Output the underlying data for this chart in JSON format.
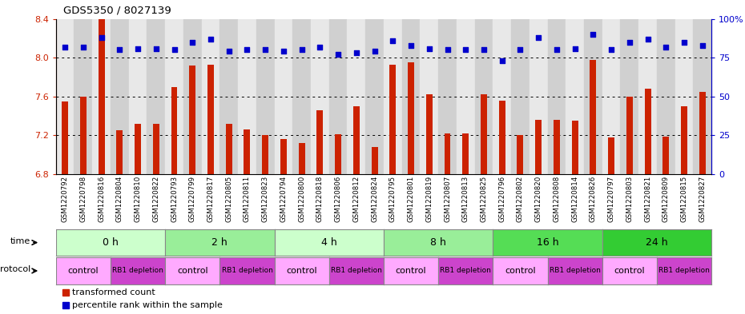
{
  "title": "GDS5350 / 8027139",
  "samples": [
    "GSM1220792",
    "GSM1220798",
    "GSM1220816",
    "GSM1220804",
    "GSM1220810",
    "GSM1220822",
    "GSM1220793",
    "GSM1220799",
    "GSM1220817",
    "GSM1220805",
    "GSM1220811",
    "GSM1220823",
    "GSM1220794",
    "GSM1220800",
    "GSM1220818",
    "GSM1220806",
    "GSM1220812",
    "GSM1220824",
    "GSM1220795",
    "GSM1220801",
    "GSM1220819",
    "GSM1220807",
    "GSM1220813",
    "GSM1220825",
    "GSM1220796",
    "GSM1220802",
    "GSM1220820",
    "GSM1220808",
    "GSM1220814",
    "GSM1220826",
    "GSM1220797",
    "GSM1220803",
    "GSM1220821",
    "GSM1220809",
    "GSM1220815",
    "GSM1220827"
  ],
  "red_values": [
    7.55,
    7.6,
    8.4,
    7.25,
    7.32,
    7.32,
    7.7,
    7.92,
    7.93,
    7.32,
    7.26,
    7.2,
    7.16,
    7.12,
    7.46,
    7.21,
    7.5,
    7.08,
    7.93,
    7.95,
    7.62,
    7.22,
    7.22,
    7.62,
    7.56,
    7.2,
    7.36,
    7.36,
    7.35,
    7.98,
    7.18,
    7.6,
    7.68,
    7.19,
    7.5,
    7.65
  ],
  "blue_values": [
    82,
    82,
    88,
    80,
    81,
    81,
    80,
    85,
    87,
    79,
    80,
    80,
    79,
    80,
    82,
    77,
    78,
    79,
    86,
    83,
    81,
    80,
    80,
    80,
    73,
    80,
    88,
    80,
    81,
    90,
    80,
    85,
    87,
    82,
    85,
    83
  ],
  "ylim_left": [
    6.8,
    8.4
  ],
  "ylim_right": [
    0,
    100
  ],
  "yticks_left": [
    6.8,
    7.2,
    7.6,
    8.0,
    8.4
  ],
  "yticks_right": [
    0,
    25,
    50,
    75,
    100
  ],
  "bar_color": "#CC2200",
  "dot_color": "#0000CC",
  "bg_color": "#ffffff",
  "col_bg_even": "#e8e8e8",
  "col_bg_odd": "#d0d0d0",
  "time_groups": [
    {
      "label": "0 h",
      "start": 0,
      "end": 6,
      "color": "#ccffcc"
    },
    {
      "label": "2 h",
      "start": 6,
      "end": 12,
      "color": "#99ee99"
    },
    {
      "label": "4 h",
      "start": 12,
      "end": 18,
      "color": "#ccffcc"
    },
    {
      "label": "8 h",
      "start": 18,
      "end": 24,
      "color": "#99ee99"
    },
    {
      "label": "16 h",
      "start": 24,
      "end": 30,
      "color": "#55dd55"
    },
    {
      "label": "24 h",
      "start": 30,
      "end": 36,
      "color": "#33cc33"
    }
  ],
  "protocol_groups": [
    {
      "label": "control",
      "start": 0,
      "end": 3,
      "color": "#ffaaff"
    },
    {
      "label": "RB1 depletion",
      "start": 3,
      "end": 6,
      "color": "#cc44cc"
    },
    {
      "label": "control",
      "start": 6,
      "end": 9,
      "color": "#ffaaff"
    },
    {
      "label": "RB1 depletion",
      "start": 9,
      "end": 12,
      "color": "#cc44cc"
    },
    {
      "label": "control",
      "start": 12,
      "end": 15,
      "color": "#ffaaff"
    },
    {
      "label": "RB1 depletion",
      "start": 15,
      "end": 18,
      "color": "#cc44cc"
    },
    {
      "label": "control",
      "start": 18,
      "end": 21,
      "color": "#ffaaff"
    },
    {
      "label": "RB1 depletion",
      "start": 21,
      "end": 24,
      "color": "#cc44cc"
    },
    {
      "label": "control",
      "start": 24,
      "end": 27,
      "color": "#ffaaff"
    },
    {
      "label": "RB1 depletion",
      "start": 27,
      "end": 30,
      "color": "#cc44cc"
    },
    {
      "label": "control",
      "start": 30,
      "end": 33,
      "color": "#ffaaff"
    },
    {
      "label": "RB1 depletion",
      "start": 33,
      "end": 36,
      "color": "#cc44cc"
    }
  ],
  "legend_red_label": "transformed count",
  "legend_blue_label": "percentile rank within the sample"
}
